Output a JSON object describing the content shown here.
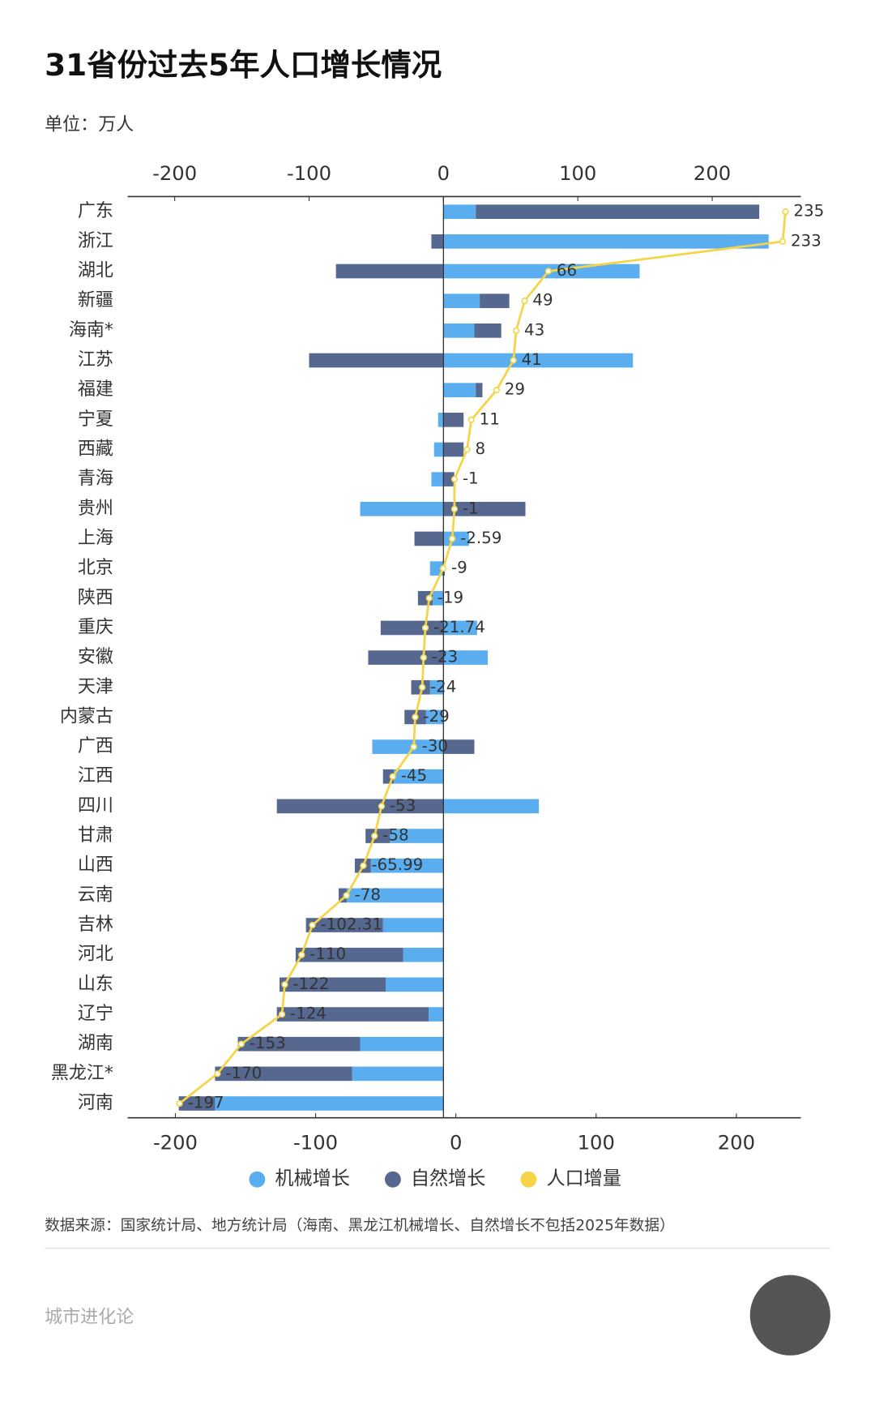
{
  "chart_data": {
    "type": "bar",
    "orientation": "horizontal",
    "title": "31省份过去5年人口增长情况",
    "subtitle": "单位：万人",
    "categories": [
      "广东",
      "浙江",
      "湖北",
      "新疆",
      "海南*",
      "江苏",
      "福建",
      "宁夏",
      "西藏",
      "青海",
      "贵州",
      "上海",
      "北京",
      "陕西",
      "重庆",
      "安徽",
      "天津",
      "内蒙古",
      "广西",
      "江西",
      "四川",
      "甘肃",
      "山西",
      "云南",
      "吉林",
      "河北",
      "山东",
      "辽宁",
      "湖南",
      "黑龙江*",
      "河南"
    ],
    "series": [
      {
        "name": "机械增长",
        "color": "#5aaef0",
        "values": [
          24,
          242,
          146,
          27,
          23,
          141,
          24,
          -4,
          -7,
          -9,
          -62,
          19,
          -10,
          -8,
          25,
          33,
          -10,
          -13,
          -53,
          -37,
          71,
          -40,
          -54,
          -72,
          -45,
          -30,
          -43,
          -11,
          -62,
          -68,
          -170
        ]
      },
      {
        "name": "自然增长",
        "color": "#56688f",
        "values": [
          211,
          -9,
          -80,
          22,
          20,
          -100,
          5,
          15,
          15,
          8,
          61,
          -21.59,
          1,
          -11,
          -46.74,
          -56,
          -14,
          -16,
          23,
          -8,
          -124,
          -18,
          -11.99,
          -6,
          -57.31,
          -80,
          -79,
          -113,
          -91,
          -102,
          -27
        ]
      },
      {
        "name": "人口增量",
        "color": "#f5d547",
        "type": "line",
        "axis": "x2",
        "values": [
          235,
          233,
          66,
          49,
          43,
          41,
          29,
          11,
          8,
          -1,
          -1,
          -2.59,
          -9,
          -19,
          -21.74,
          -23,
          -24,
          -29,
          -30,
          -45,
          -53,
          -58,
          -65.99,
          -78,
          -102.31,
          -110,
          -122,
          -124,
          -153,
          -170,
          -197
        ]
      }
    ],
    "xlim": [
      -235,
      266
    ],
    "xticks": [
      -200,
      -100,
      0,
      100,
      200
    ],
    "x2lim": [
      -234,
      246
    ],
    "x2ticks": [
      -200,
      -100,
      0,
      100,
      200
    ],
    "legend": "bottom",
    "source": "数据来源：国家统计局、地方统计局（海南、黑龙江机械增长、自然增长不包括2025年数据）",
    "footer": "城市进化论"
  }
}
